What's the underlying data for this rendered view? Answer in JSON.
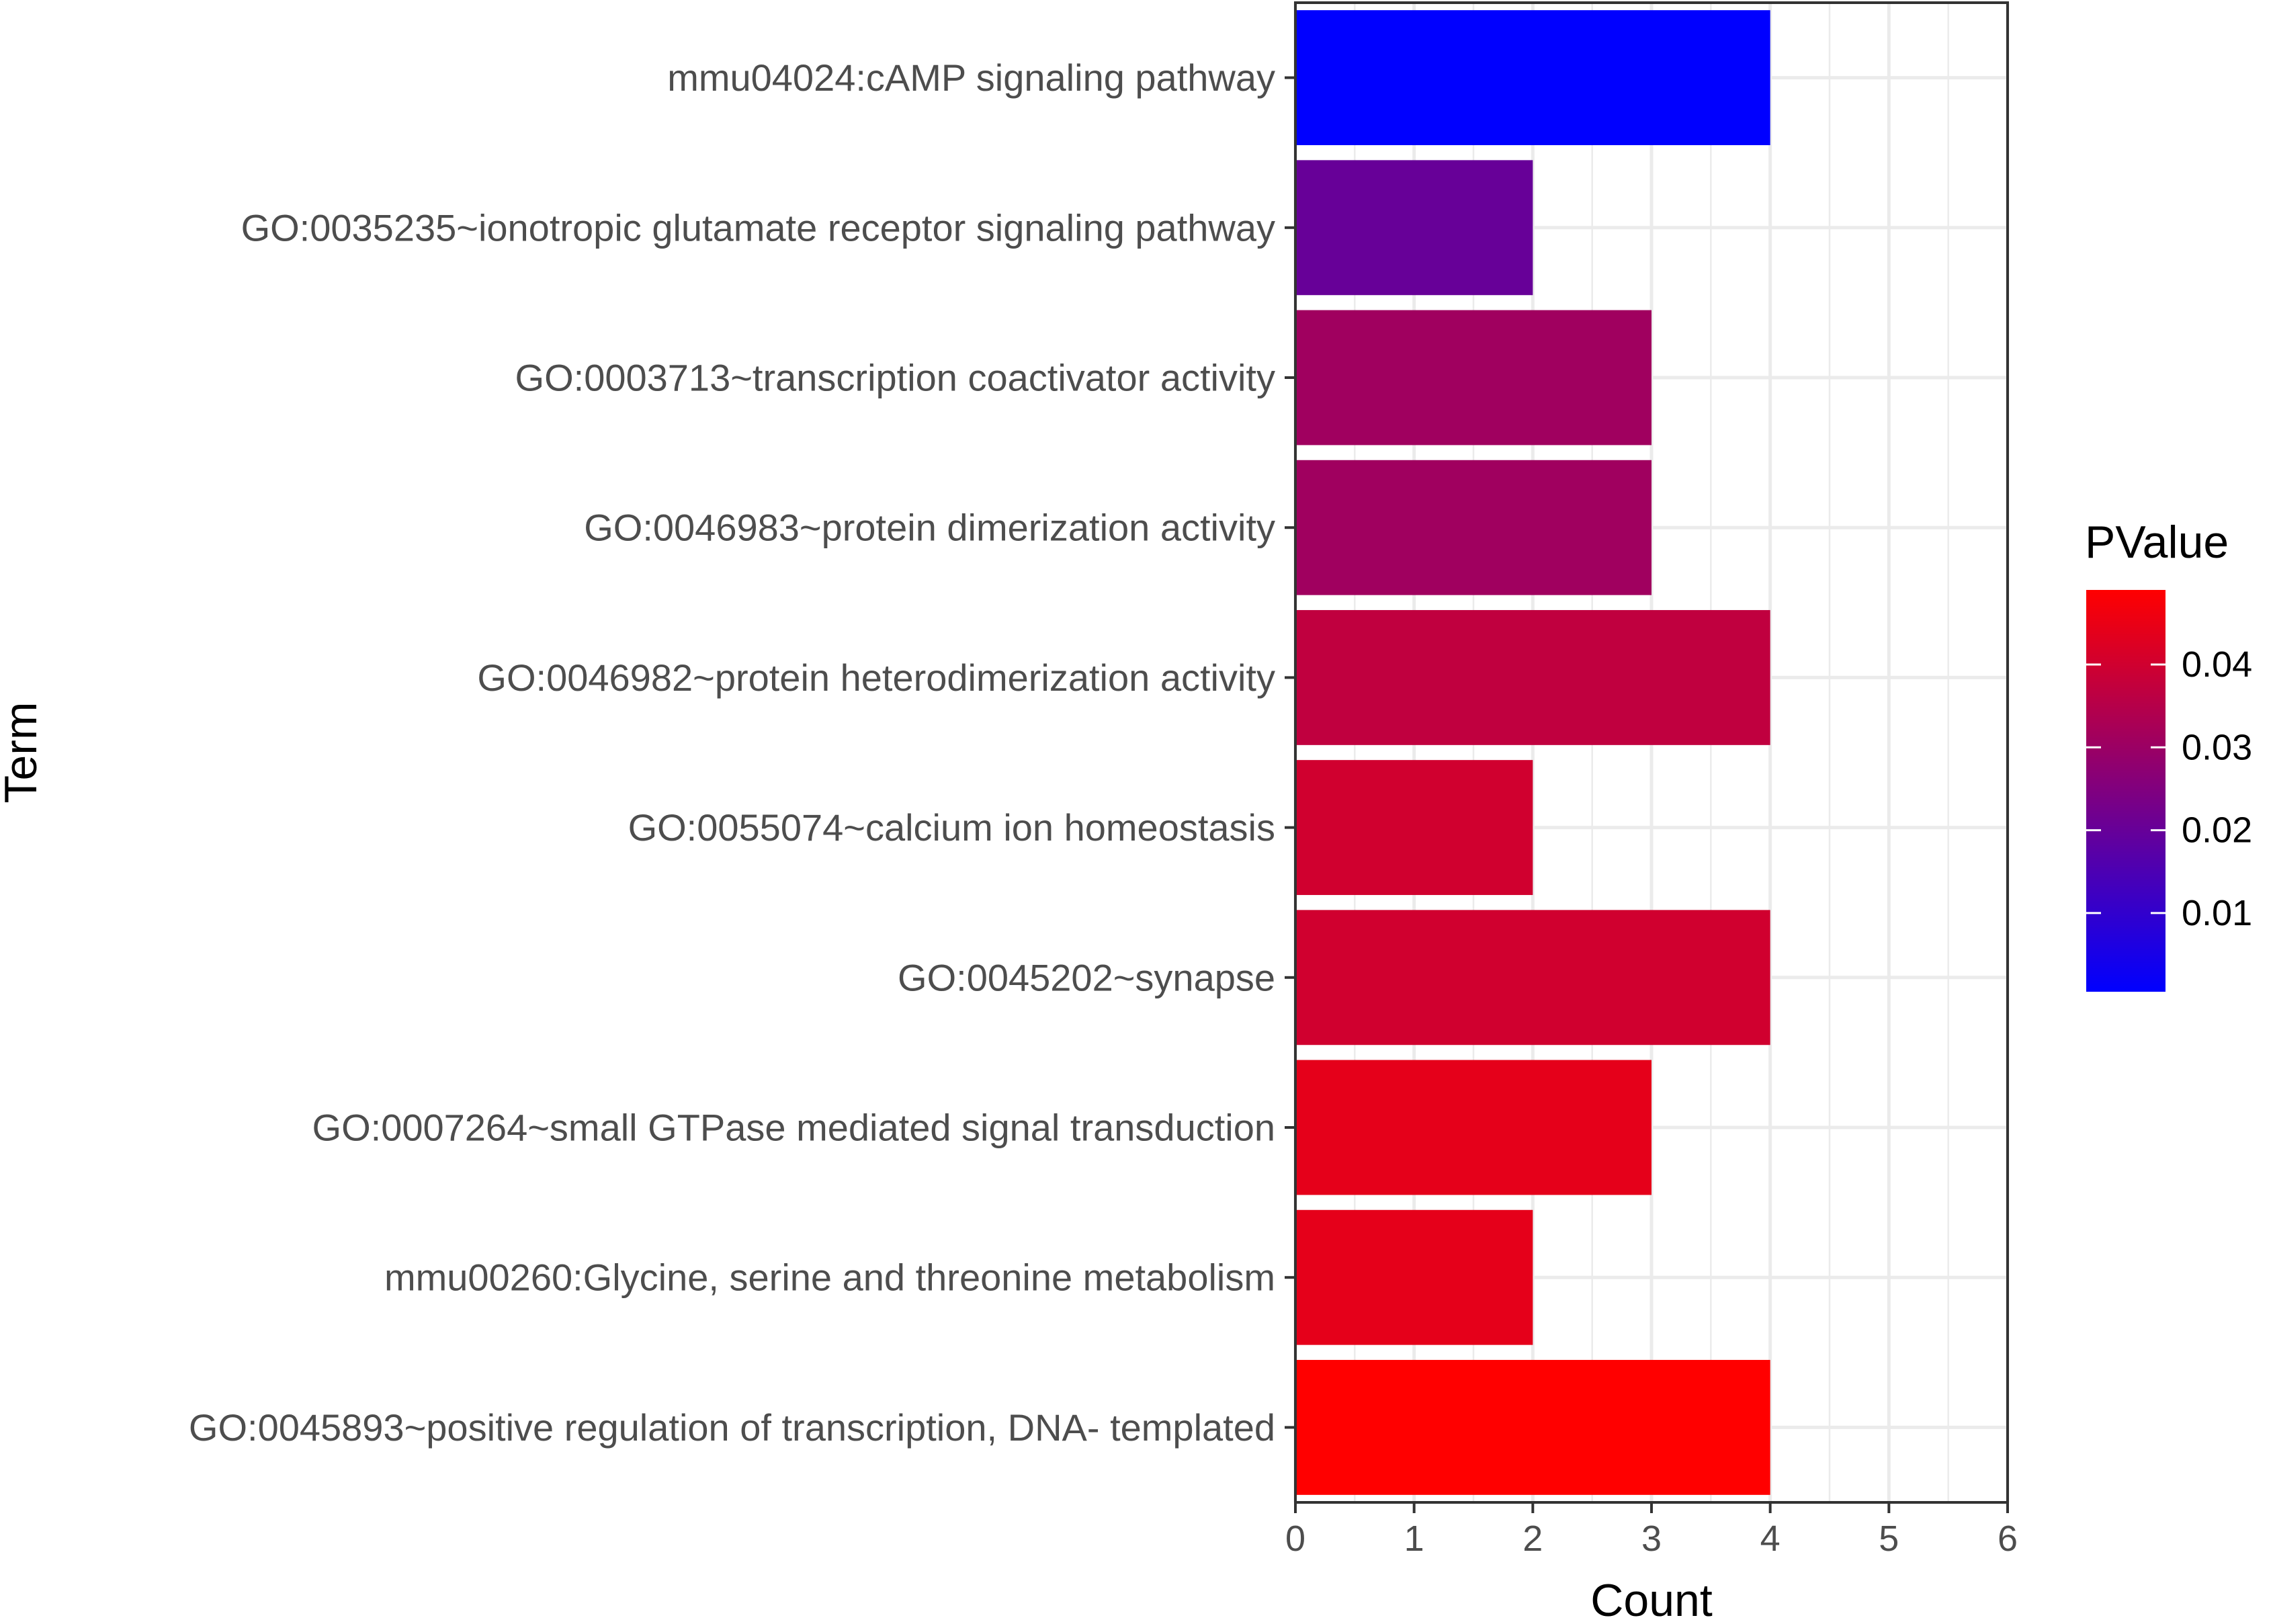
{
  "chart_data": {
    "type": "bar",
    "orientation": "horizontal",
    "xlabel": "Count",
    "ylabel": "Term",
    "xlim": [
      0,
      6
    ],
    "xticks": [
      0,
      1,
      2,
      3,
      4,
      5,
      6
    ],
    "grid": true,
    "categories": [
      "mmu04024:cAMP signaling pathway",
      "GO:0035235~ionotropic glutamate receptor signaling pathway",
      "GO:0003713~transcription coactivator activity",
      "GO:0046983~protein dimerization activity",
      "GO:0046982~protein heterodimerization activity",
      "GO:0055074~calcium ion homeostasis",
      "GO:0045202~synapse",
      "GO:0007264~small GTPase mediated signal transduction",
      "mmu00260:Glycine, serine and threonine metabolism",
      "GO:0045893~positive regulation of transcription, DNA- templated"
    ],
    "values": [
      4,
      2,
      3,
      3,
      4,
      2,
      4,
      3,
      2,
      4
    ],
    "pvalues": [
      0.0005,
      0.02,
      0.031,
      0.031,
      0.037,
      0.04,
      0.04,
      0.044,
      0.044,
      0.049
    ],
    "legend": {
      "title": "PValue",
      "position": "right",
      "low_color": "#0000ff",
      "high_color": "#ff0000",
      "range": [
        0.0005,
        0.049
      ],
      "ticks": [
        0.01,
        0.02,
        0.03,
        0.04
      ],
      "tick_labels": [
        "0.01",
        "0.02",
        "0.03",
        "0.04"
      ]
    }
  }
}
